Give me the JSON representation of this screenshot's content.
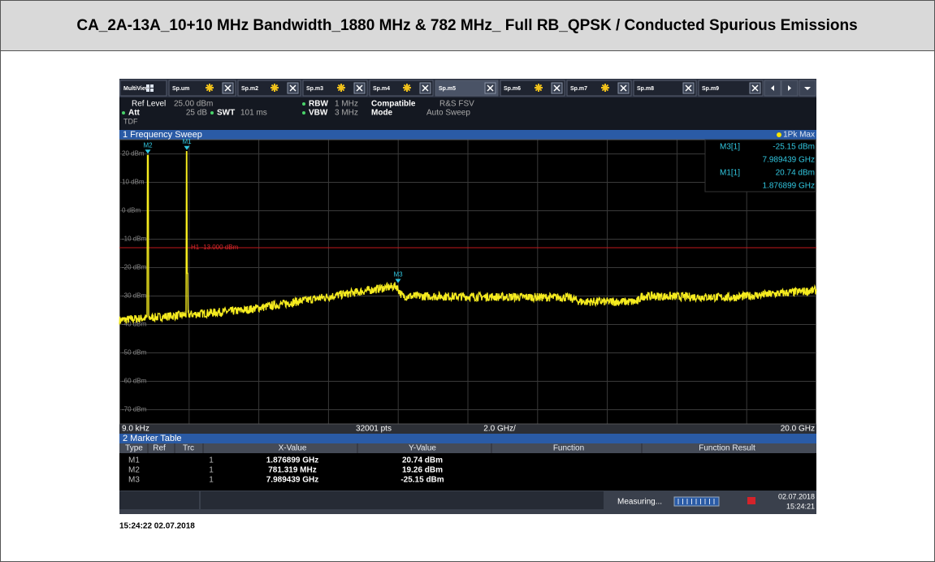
{
  "document": {
    "title": "CA_2A-13A_10+10 MHz Bandwidth_1880 MHz & 782 MHz_ Full RB_QPSK / Conducted Spurious Emissions",
    "screen": {
      "tabs": [
        "MultiView",
        "Sp.um",
        "Sp.m2",
        "Sp.m3",
        "Sp.m4",
        "Sp.m5",
        "Sp.m6",
        "Sp.m7",
        "Sp.m8",
        "Sp.m9"
      ],
      "settings": {
        "ref_level_label": "Ref Level",
        "ref_level": "25.00 dBm",
        "att_label": "Att",
        "att": "25 dB",
        "swt_label": "SWT",
        "swt": "101 ms",
        "rbw_label": "RBW",
        "rbw": "1 MHz",
        "vbw_label": "VBW",
        "vbw": "3 MHz",
        "compatible_label": "Compatible",
        "compatible": "R&S FSV",
        "mode_label": "Mode",
        "mode": "Auto Sweep",
        "tdf": "TDF"
      },
      "sweep": {
        "title": "1 Frequency Sweep",
        "trace": "1Pk Max",
        "y_labels": [
          "20 dBm",
          "10 dBm",
          "0 dBm",
          "-10 dBm",
          "-20 dBm",
          "-30 dBm",
          "-40 dBm",
          "-50 dBm",
          "-60 dBm",
          "-70 dBm"
        ],
        "limit_line": "H1 -13.000 dBm",
        "markers": [
          "M1",
          "M2",
          "M3"
        ],
        "readout": [
          [
            "M3[1]",
            "-25.15 dBm",
            "7.989439 GHz"
          ],
          [
            "M1[1]",
            "20.74 dBm",
            "1.876899 GHz"
          ]
        ],
        "start": "9.0 kHz",
        "points": "32001 pts",
        "span": "2.0 GHz/",
        "stop": "20.0 GHz"
      },
      "marker_table": {
        "title": "2 Marker Table",
        "columns": [
          "Type",
          "Ref",
          "Trc",
          "X-Value",
          "Y-Value",
          "Function",
          "Function Result"
        ],
        "rows": [
          [
            "M1",
            "1",
            "1.876899 GHz",
            "20.74 dBm"
          ],
          [
            "M2",
            "1",
            "781.319 MHz",
            "19.26 dBm"
          ],
          [
            "M3",
            "1",
            "7.989439 GHz",
            "-25.15 dBm"
          ]
        ]
      },
      "status": {
        "text": "Measuring...",
        "date": "02.07.2018",
        "time": "15:24:21"
      }
    },
    "timestamp": "15:24:22 02.07.2018"
  }
}
